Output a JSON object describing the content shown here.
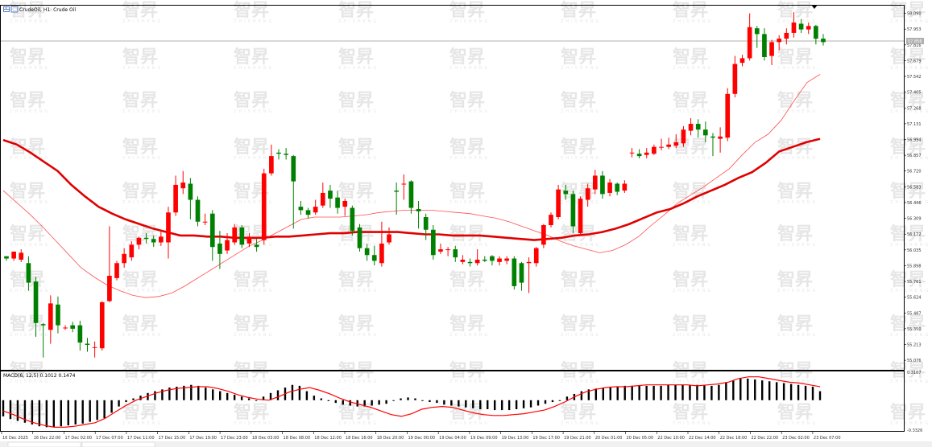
{
  "window": {
    "title": "CrudeOil, H1: Crude Oil",
    "macd_label": "MACD(6, 12,5) 0.1012 0.1474",
    "current_price_tag": "57.856",
    "watermark_text": "智昇",
    "watermark_sub": "ZHISHENG"
  },
  "colors": {
    "bull": "#ff0000",
    "bear": "#008000",
    "ma_fast": "#ff4d4d",
    "ma_slow": "#e00000",
    "macd_bar": "#000000",
    "macd_signal": "#ff0000",
    "grid": "#ffffff",
    "axis": "#000000"
  },
  "chart_data": [
    {
      "type": "candlestick",
      "price_axis": {
        "ylim": [
          55.0,
          58.15
        ],
        "ticks": [
          "58.090",
          "57.953",
          "57.816",
          "57.679",
          "57.542",
          "57.405",
          "57.268",
          "57.131",
          "56.994",
          "56.857",
          "56.720",
          "56.583",
          "56.446",
          "56.309",
          "56.172",
          "56.035",
          "55.898",
          "55.761",
          "55.624",
          "55.487",
          "55.350",
          "55.213",
          "55.076"
        ]
      },
      "time_axis": {
        "ticks": [
          "16 Dec 2025",
          "16 Dec 22:00",
          "17 Dec 02:00",
          "17 Dec 07:00",
          "17 Dec 11:00",
          "17 Dec 15:00",
          "17 Dec 19:00",
          "17 Dec 23:00",
          "18 Dec 03:00",
          "18 Dec 08:00",
          "18 Dec 12:00",
          "18 Dec 16:00",
          "18 Dec 20:00",
          "19 Dec 00:00",
          "19 Dec 04:00",
          "19 Dec 09:00",
          "19 Dec 13:00",
          "19 Dec 17:00",
          "19 Dec 21:00",
          "20 Dec 01:00",
          "20 Dec 05:00",
          "22 Dec 10:00",
          "22 Dec 14:00",
          "22 Dec 18:00",
          "22 Dec 22:00",
          "23 Dec 02:00",
          "23 Dec 07:00"
        ]
      },
      "candles": [
        [
          55.98,
          55.96,
          55.97,
          55.94
        ],
        [
          55.96,
          56.02,
          56.02,
          55.94
        ],
        [
          55.95,
          56.01,
          56.04,
          55.93
        ],
        [
          55.92,
          55.75,
          55.98,
          55.68
        ],
        [
          55.76,
          55.4,
          55.8,
          55.28
        ],
        [
          55.39,
          55.38,
          55.4,
          55.1
        ],
        [
          55.34,
          55.57,
          55.64,
          55.22
        ],
        [
          55.56,
          55.38,
          55.63,
          55.31
        ],
        [
          55.36,
          55.36,
          55.38,
          55.34
        ],
        [
          55.38,
          55.35,
          55.41,
          55.32
        ],
        [
          55.38,
          55.23,
          55.42,
          55.16
        ],
        [
          55.22,
          55.21,
          55.27,
          55.15
        ],
        [
          55.19,
          55.19,
          55.24,
          55.1
        ],
        [
          55.18,
          55.58,
          55.59,
          55.16
        ],
        [
          55.59,
          55.81,
          56.24,
          55.58
        ],
        [
          55.79,
          55.92,
          55.94,
          55.77
        ],
        [
          55.92,
          56.0,
          56.05,
          55.88
        ],
        [
          55.97,
          56.08,
          56.11,
          55.94
        ],
        [
          56.08,
          56.14,
          56.15,
          56.04
        ],
        [
          56.14,
          56.13,
          56.18,
          56.09
        ],
        [
          56.13,
          56.1,
          56.16,
          56.06
        ],
        [
          56.1,
          56.15,
          56.21,
          56.07
        ],
        [
          56.1,
          56.36,
          56.41,
          55.96
        ],
        [
          56.36,
          56.6,
          56.68,
          56.33
        ],
        [
          56.57,
          56.62,
          56.72,
          56.52
        ],
        [
          56.61,
          56.47,
          56.66,
          56.3
        ],
        [
          56.47,
          56.28,
          56.5,
          56.24
        ],
        [
          56.28,
          56.28,
          56.35,
          56.25
        ],
        [
          56.35,
          56.06,
          56.38,
          55.94
        ],
        [
          56.09,
          56.0,
          56.2,
          55.87
        ],
        [
          56.03,
          56.12,
          56.18,
          56.0
        ],
        [
          56.1,
          56.23,
          56.26,
          56.08
        ],
        [
          56.23,
          56.08,
          56.25,
          56.05
        ],
        [
          56.09,
          56.15,
          56.18,
          56.06
        ],
        [
          56.08,
          56.06,
          56.13,
          56.02
        ],
        [
          56.12,
          56.7,
          56.74,
          56.08
        ],
        [
          56.7,
          56.85,
          56.95,
          56.68
        ],
        [
          56.88,
          56.87,
          56.91,
          56.82
        ],
        [
          56.87,
          56.86,
          56.92,
          56.82
        ],
        [
          56.85,
          56.63,
          56.86,
          56.22
        ],
        [
          56.41,
          56.38,
          56.46,
          56.34
        ],
        [
          56.38,
          56.34,
          56.4,
          56.31
        ],
        [
          56.36,
          56.41,
          56.47,
          56.34
        ],
        [
          56.42,
          56.53,
          56.62,
          56.4
        ],
        [
          56.55,
          56.48,
          56.6,
          56.4
        ],
        [
          56.49,
          56.4,
          56.55,
          56.35
        ],
        [
          56.41,
          56.46,
          56.48,
          56.33
        ],
        [
          56.4,
          56.2,
          56.42,
          56.16
        ],
        [
          56.23,
          56.05,
          56.26,
          56.02
        ],
        [
          56.05,
          55.99,
          56.09,
          55.94
        ],
        [
          55.99,
          55.94,
          56.07,
          55.9
        ],
        [
          55.92,
          56.09,
          56.28,
          55.89
        ],
        [
          56.1,
          56.17,
          56.23,
          56.08
        ],
        [
          56.55,
          56.54,
          56.62,
          56.34
        ],
        [
          56.61,
          56.61,
          56.69,
          56.47
        ],
        [
          56.63,
          56.4,
          56.64,
          56.35
        ],
        [
          56.39,
          56.37,
          56.46,
          56.22
        ],
        [
          56.32,
          56.21,
          56.35,
          56.12
        ],
        [
          56.21,
          55.99,
          56.25,
          55.95
        ],
        [
          56.02,
          56.04,
          56.09,
          56.0
        ],
        [
          56.04,
          56.04,
          56.06,
          55.98
        ],
        [
          56.04,
          55.97,
          56.07,
          55.93
        ],
        [
          55.93,
          55.95,
          55.99,
          55.91
        ],
        [
          55.93,
          55.92,
          55.96,
          55.89
        ],
        [
          55.92,
          55.95,
          56.04,
          55.9
        ],
        [
          55.95,
          55.94,
          55.98,
          55.93
        ],
        [
          55.98,
          55.94,
          55.99,
          55.9
        ],
        [
          55.93,
          55.96,
          55.98,
          55.9
        ],
        [
          55.94,
          55.96,
          55.98,
          55.91
        ],
        [
          55.96,
          55.72,
          55.98,
          55.69
        ],
        [
          55.92,
          55.75,
          55.93,
          55.68
        ],
        [
          55.92,
          55.93,
          55.97,
          55.66
        ],
        [
          55.92,
          56.05,
          56.06,
          55.89
        ],
        [
          56.08,
          56.25,
          56.26,
          56.05
        ],
        [
          56.25,
          56.34,
          56.36,
          56.23
        ],
        [
          56.32,
          56.56,
          56.6,
          56.3
        ],
        [
          56.55,
          56.52,
          56.6,
          56.47
        ],
        [
          56.52,
          56.24,
          56.55,
          56.18
        ],
        [
          56.18,
          56.48,
          56.5,
          56.16
        ],
        [
          56.47,
          56.57,
          56.61,
          56.41
        ],
        [
          56.56,
          56.68,
          56.73,
          56.52
        ],
        [
          56.68,
          56.52,
          56.72,
          56.48
        ],
        [
          56.53,
          56.62,
          56.65,
          56.5
        ],
        [
          56.61,
          56.54,
          56.62,
          56.51
        ],
        [
          56.55,
          56.61,
          56.64,
          56.53
        ],
        [
          56.88,
          56.88,
          56.92,
          56.84
        ],
        [
          56.87,
          56.85,
          56.91,
          56.83
        ],
        [
          56.86,
          56.88,
          56.92,
          56.83
        ],
        [
          56.87,
          56.93,
          56.95,
          56.86
        ],
        [
          56.93,
          56.93,
          57.0,
          56.9
        ],
        [
          56.93,
          56.95,
          57.01,
          56.91
        ],
        [
          56.94,
          56.97,
          57.04,
          56.92
        ],
        [
          56.96,
          57.08,
          57.11,
          56.93
        ],
        [
          57.07,
          57.13,
          57.18,
          57.03
        ],
        [
          57.13,
          57.08,
          57.17,
          57.01
        ],
        [
          57.08,
          57.03,
          57.15,
          56.97
        ],
        [
          57.02,
          57.01,
          57.05,
          56.85
        ],
        [
          57.0,
          57.02,
          57.1,
          56.88
        ],
        [
          57.01,
          57.39,
          57.44,
          56.98
        ],
        [
          57.39,
          57.65,
          57.72,
          57.36
        ],
        [
          57.66,
          57.7,
          57.73,
          57.63
        ],
        [
          57.7,
          57.97,
          58.09,
          57.68
        ],
        [
          57.96,
          57.91,
          57.98,
          57.79
        ],
        [
          57.91,
          57.71,
          57.96,
          57.68
        ],
        [
          57.72,
          57.84,
          57.86,
          57.64
        ],
        [
          57.84,
          57.87,
          57.9,
          57.77
        ],
        [
          57.87,
          57.92,
          57.96,
          57.82
        ],
        [
          57.92,
          58.01,
          58.1,
          57.88
        ],
        [
          58.0,
          57.95,
          58.04,
          57.92
        ],
        [
          57.95,
          57.98,
          58.01,
          57.91
        ],
        [
          57.98,
          57.87,
          57.99,
          57.82
        ],
        [
          57.87,
          57.84,
          57.91,
          57.81
        ]
      ],
      "ma_fast": [
        56.55,
        56.45,
        56.35,
        56.24,
        56.12,
        56.0,
        55.88,
        55.8,
        55.73,
        55.68,
        55.64,
        55.62,
        55.63,
        55.66,
        55.72,
        55.79,
        55.86,
        55.93,
        56.0,
        56.07,
        56.12,
        56.18,
        56.24,
        56.3,
        56.32,
        56.32,
        56.32,
        56.33,
        56.34,
        56.36,
        56.37,
        56.38,
        56.38,
        56.38,
        56.37,
        56.36,
        56.35,
        56.33,
        56.31,
        56.28,
        56.24,
        56.2,
        56.16,
        56.11,
        56.07,
        56.04,
        56.01,
        56.03,
        56.08,
        56.15,
        56.25,
        56.34,
        56.44,
        56.51,
        56.58,
        56.66,
        56.74,
        56.86,
        56.97,
        57.04,
        57.16,
        57.33,
        57.49,
        57.56
      ],
      "ma_slow": [
        56.99,
        56.95,
        56.88,
        56.8,
        56.72,
        56.6,
        56.5,
        56.41,
        56.35,
        56.3,
        56.26,
        56.22,
        56.19,
        56.16,
        56.16,
        56.15,
        56.15,
        56.14,
        56.14,
        56.14,
        56.15,
        56.15,
        56.16,
        56.17,
        56.18,
        56.18,
        56.19,
        56.19,
        56.19,
        56.19,
        56.18,
        56.17,
        56.17,
        56.16,
        56.16,
        56.16,
        56.15,
        56.14,
        56.13,
        56.12,
        56.13,
        56.14,
        56.16,
        56.17,
        56.19,
        56.22,
        56.26,
        56.31,
        56.36,
        56.39,
        56.44,
        56.5,
        56.55,
        56.6,
        56.66,
        56.71,
        56.79,
        56.89,
        56.93,
        56.97,
        57.0
      ]
    },
    {
      "type": "bar",
      "name": "MACD(6, 12,5)",
      "ylim": [
        -0.3326,
        0.3107
      ],
      "y_ticks": [
        "0.3107",
        "-0.3326"
      ],
      "values": [
        -0.18,
        -0.21,
        -0.23,
        -0.25,
        -0.27,
        -0.29,
        -0.3,
        -0.3,
        -0.29,
        -0.28,
        -0.27,
        -0.26,
        -0.24,
        -0.22,
        -0.2,
        -0.14,
        -0.07,
        -0.02,
        0.02,
        0.05,
        0.08,
        0.1,
        0.12,
        0.14,
        0.15,
        0.16,
        0.17,
        0.16,
        0.14,
        0.12,
        0.1,
        0.08,
        0.06,
        0.04,
        0.02,
        0.0,
        0.04,
        0.08,
        0.11,
        0.14,
        0.17,
        0.16,
        0.1,
        0.05,
        0.02,
        -0.01,
        -0.03,
        -0.05,
        -0.06,
        -0.07,
        -0.07,
        -0.06,
        -0.05,
        -0.04,
        0.0,
        0.02,
        0.03,
        0.02,
        0.0,
        -0.02,
        -0.03,
        -0.05,
        -0.06,
        -0.07,
        -0.08,
        -0.09,
        -0.1,
        -0.1,
        -0.11,
        -0.11,
        -0.11,
        -0.1,
        -0.09,
        -0.08,
        -0.06,
        -0.04,
        -0.02,
        0.0,
        0.04,
        0.07,
        0.1,
        0.12,
        0.13,
        0.14,
        0.15,
        0.15,
        0.16,
        0.16,
        0.16,
        0.16,
        0.16,
        0.16,
        0.17,
        0.17,
        0.17,
        0.17,
        0.17,
        0.17,
        0.16,
        0.17,
        0.2,
        0.22,
        0.24,
        0.24,
        0.23,
        0.22,
        0.21,
        0.2,
        0.19,
        0.18,
        0.17,
        0.16,
        0.15,
        0.1
      ],
      "signal": [
        -0.12,
        -0.16,
        -0.21,
        -0.25,
        -0.28,
        -0.3,
        -0.3,
        -0.29,
        -0.27,
        -0.25,
        -0.2,
        -0.13,
        -0.06,
        0.0,
        0.04,
        0.08,
        0.11,
        0.13,
        0.14,
        0.15,
        0.15,
        0.13,
        0.1,
        0.06,
        0.03,
        0.01,
        0.0,
        0.04,
        0.09,
        0.12,
        0.14,
        0.11,
        0.07,
        0.02,
        -0.02,
        -0.05,
        -0.08,
        -0.12,
        -0.16,
        -0.18,
        -0.15,
        -0.1,
        -0.08,
        -0.07,
        -0.08,
        -0.11,
        -0.14,
        -0.16,
        -0.17,
        -0.17,
        -0.16,
        -0.15,
        -0.13,
        -0.11,
        -0.07,
        -0.02,
        0.04,
        0.09,
        0.12,
        0.14,
        0.15,
        0.15,
        0.16,
        0.17,
        0.17,
        0.17,
        0.17,
        0.17,
        0.16,
        0.17,
        0.18,
        0.2,
        0.24,
        0.26,
        0.26,
        0.24,
        0.22,
        0.2,
        0.19,
        0.17,
        0.15
      ]
    }
  ]
}
